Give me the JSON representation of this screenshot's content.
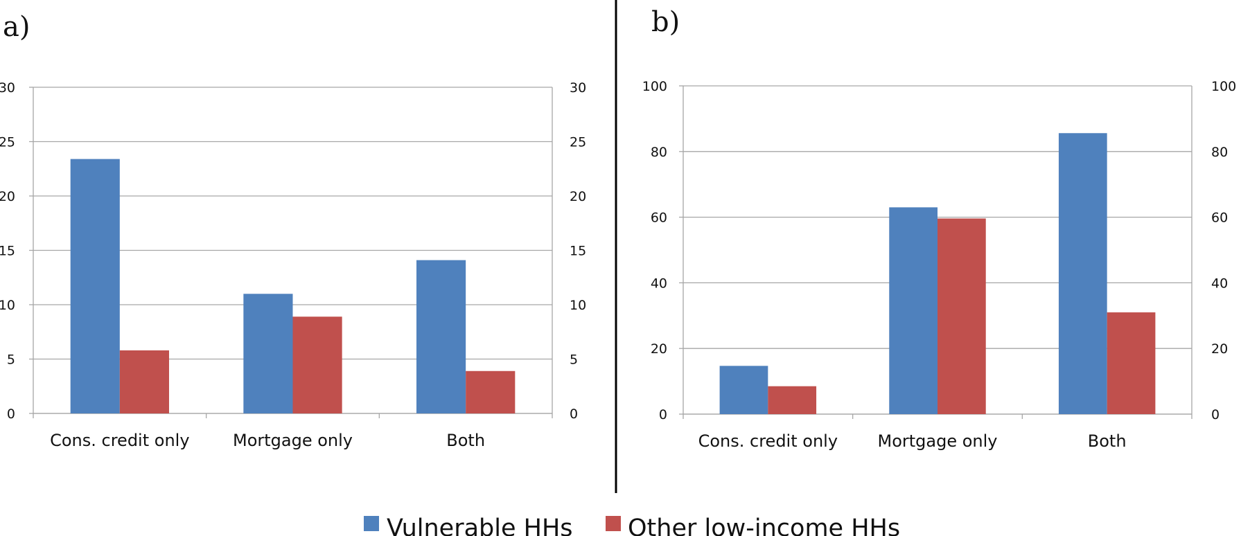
{
  "colors": {
    "vulnerable": "#4F81BD",
    "other_low_income": "#C0504D",
    "grid": "#A6A6A6",
    "frame": "#A6A6A6",
    "divider": "#000000"
  },
  "legend": {
    "items": [
      {
        "label": "Vulnerable HHs",
        "color": "#4F81BD"
      },
      {
        "label": "Other low-income HHs",
        "color": "#C0504D"
      }
    ],
    "placement": "bottom-center"
  },
  "chart_data": [
    {
      "panel_label": "a)",
      "type": "bar",
      "categories": [
        "Cons. credit only",
        "Mortgage only",
        "Both"
      ],
      "series": [
        {
          "name": "Vulnerable HHs",
          "values": [
            23.4,
            11.0,
            14.1
          ]
        },
        {
          "name": "Other low-income HHs",
          "values": [
            5.8,
            8.9,
            3.9
          ]
        }
      ],
      "ylim": [
        0,
        30
      ],
      "yticks": [
        0,
        5,
        10,
        15,
        20,
        25,
        30
      ],
      "grid": true,
      "secondary_axis": true
    },
    {
      "panel_label": "b)",
      "type": "bar",
      "categories": [
        "Cons. credit only",
        "Mortgage only",
        "Both"
      ],
      "series": [
        {
          "name": "Vulnerable HHs",
          "values": [
            14.7,
            63.0,
            85.6
          ]
        },
        {
          "name": "Other low-income HHs",
          "values": [
            8.5,
            59.6,
            31.0
          ]
        }
      ],
      "ylim": [
        0,
        100
      ],
      "yticks": [
        0,
        20,
        40,
        60,
        80,
        100
      ],
      "grid": true,
      "secondary_axis": true
    }
  ]
}
